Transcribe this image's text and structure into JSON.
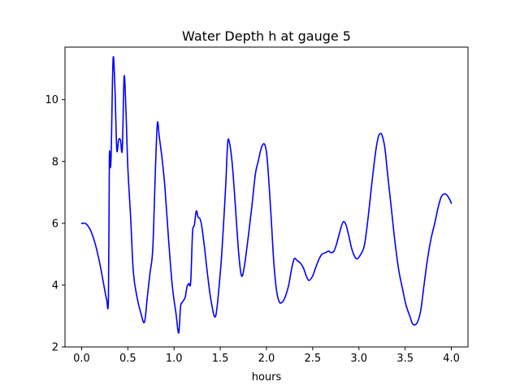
{
  "chart_data": {
    "type": "line",
    "title": "Water Depth h at gauge 5",
    "xlabel": "hours",
    "ylabel": "",
    "xlim": [
      -0.18,
      4.18
    ],
    "ylim": [
      2.0,
      11.7
    ],
    "grid": false,
    "x_ticks": [
      0.0,
      0.5,
      1.0,
      1.5,
      2.0,
      2.5,
      3.0,
      3.5,
      4.0
    ],
    "x_tick_labels": [
      "0.0",
      "0.5",
      "1.0",
      "1.5",
      "2.0",
      "2.5",
      "3.0",
      "3.5",
      "4.0"
    ],
    "y_ticks": [
      2,
      4,
      6,
      8,
      10
    ],
    "y_tick_labels": [
      "2",
      "4",
      "6",
      "8",
      "10"
    ],
    "series": [
      {
        "color": "#0000ff",
        "x": [
          0.0,
          0.03,
          0.06,
          0.1,
          0.15,
          0.2,
          0.24,
          0.27,
          0.29,
          0.3,
          0.31,
          0.32,
          0.34,
          0.36,
          0.38,
          0.4,
          0.42,
          0.44,
          0.46,
          0.48,
          0.5,
          0.53,
          0.56,
          0.6,
          0.64,
          0.68,
          0.71,
          0.74,
          0.77,
          0.8,
          0.82,
          0.84,
          0.87,
          0.9,
          0.94,
          0.98,
          1.02,
          1.05,
          1.07,
          1.09,
          1.12,
          1.14,
          1.16,
          1.18,
          1.2,
          1.22,
          1.24,
          1.26,
          1.28,
          1.3,
          1.33,
          1.36,
          1.4,
          1.45,
          1.5,
          1.53,
          1.56,
          1.58,
          1.6,
          1.63,
          1.66,
          1.7,
          1.73,
          1.76,
          1.8,
          1.84,
          1.88,
          1.91,
          1.94,
          1.96,
          1.98,
          2.0,
          2.02,
          2.05,
          2.08,
          2.11,
          2.14,
          2.17,
          2.2,
          2.24,
          2.27,
          2.3,
          2.33,
          2.37,
          2.4,
          2.43,
          2.46,
          2.5,
          2.53,
          2.57,
          2.6,
          2.64,
          2.67,
          2.7,
          2.73,
          2.76,
          2.8,
          2.83,
          2.86,
          2.89,
          2.92,
          2.95,
          2.98,
          3.02,
          3.06,
          3.1,
          3.14,
          3.18,
          3.21,
          3.23,
          3.25,
          3.28,
          3.31,
          3.35,
          3.39,
          3.43,
          3.47,
          3.51,
          3.55,
          3.58,
          3.61,
          3.64,
          3.67,
          3.7,
          3.74,
          3.78,
          3.82,
          3.86,
          3.89,
          3.92,
          3.95,
          3.98,
          4.0
        ],
        "y": [
          6.0,
          6.0,
          5.95,
          5.75,
          5.3,
          4.65,
          4.0,
          3.55,
          3.6,
          8.1,
          7.8,
          8.3,
          11.3,
          10.4,
          8.4,
          8.7,
          8.7,
          8.4,
          10.75,
          9.6,
          7.8,
          6.2,
          4.4,
          3.6,
          3.1,
          2.8,
          3.6,
          4.4,
          5.2,
          7.9,
          9.25,
          8.8,
          8.1,
          7.2,
          5.5,
          4.0,
          3.1,
          2.45,
          3.3,
          3.45,
          3.6,
          3.95,
          4.05,
          4.1,
          5.7,
          5.95,
          6.4,
          6.2,
          6.15,
          5.9,
          5.2,
          4.4,
          3.5,
          3.0,
          4.4,
          5.7,
          7.3,
          8.6,
          8.6,
          7.9,
          6.7,
          5.0,
          4.3,
          4.6,
          5.5,
          6.5,
          7.6,
          8.0,
          8.4,
          8.55,
          8.55,
          8.3,
          7.6,
          6.2,
          4.7,
          3.8,
          3.45,
          3.45,
          3.6,
          4.0,
          4.5,
          4.85,
          4.8,
          4.7,
          4.55,
          4.3,
          4.15,
          4.3,
          4.55,
          4.85,
          5.0,
          5.05,
          5.1,
          5.05,
          5.1,
          5.35,
          5.8,
          6.05,
          5.95,
          5.6,
          5.2,
          4.95,
          4.85,
          5.0,
          5.3,
          6.2,
          7.3,
          8.3,
          8.8,
          8.9,
          8.85,
          8.45,
          7.6,
          6.5,
          5.4,
          4.5,
          3.9,
          3.35,
          3.0,
          2.75,
          2.72,
          2.85,
          3.2,
          3.9,
          4.8,
          5.5,
          6.0,
          6.55,
          6.85,
          6.95,
          6.92,
          6.78,
          6.65
        ]
      }
    ]
  }
}
